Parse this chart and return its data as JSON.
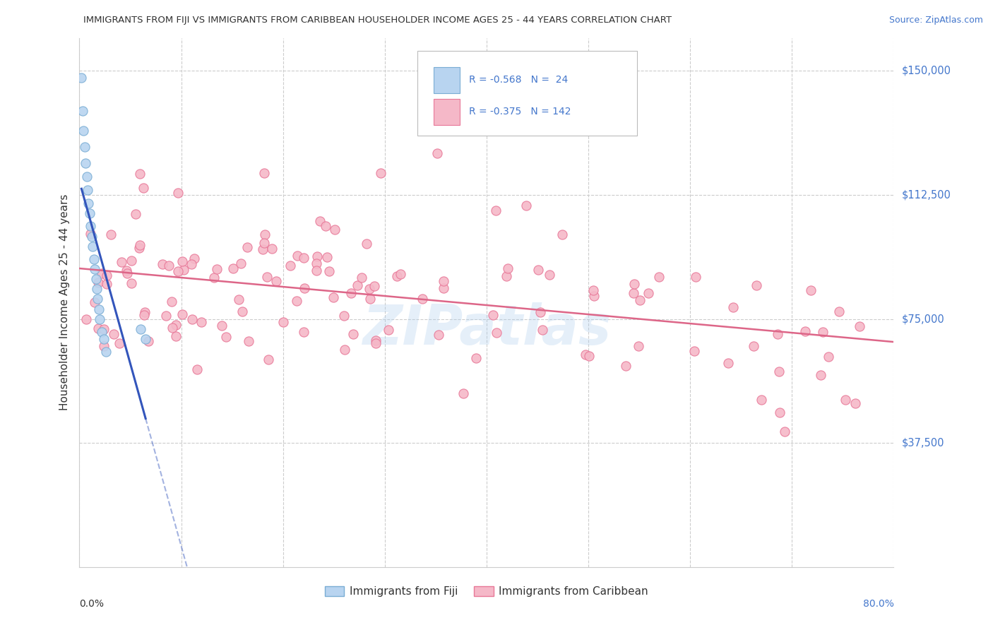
{
  "title": "IMMIGRANTS FROM FIJI VS IMMIGRANTS FROM CARIBBEAN HOUSEHOLDER INCOME AGES 25 - 44 YEARS CORRELATION CHART",
  "source": "Source: ZipAtlas.com",
  "ylabel": "Householder Income Ages 25 - 44 years",
  "y_tick_labels": [
    "$150,000",
    "$112,500",
    "$75,000",
    "$37,500"
  ],
  "y_tick_values": [
    150000,
    112500,
    75000,
    37500
  ],
  "x_range": [
    0,
    0.8
  ],
  "y_range": [
    0,
    160000
  ],
  "fiji_R": -0.568,
  "fiji_N": 24,
  "caribbean_R": -0.375,
  "caribbean_N": 142,
  "fiji_color": "#b8d4f0",
  "fiji_edge_color": "#7aadd4",
  "caribbean_color": "#f5b8c8",
  "caribbean_edge_color": "#e87898",
  "fiji_line_color": "#3355bb",
  "caribbean_line_color": "#dd6688",
  "watermark": "ZIPatlas",
  "background_color": "#ffffff",
  "grid_color": "#cccccc",
  "title_color": "#333333",
  "right_label_color": "#4477cc",
  "legend_text_color": "#4477cc",
  "bottom_label_color": "#333333"
}
